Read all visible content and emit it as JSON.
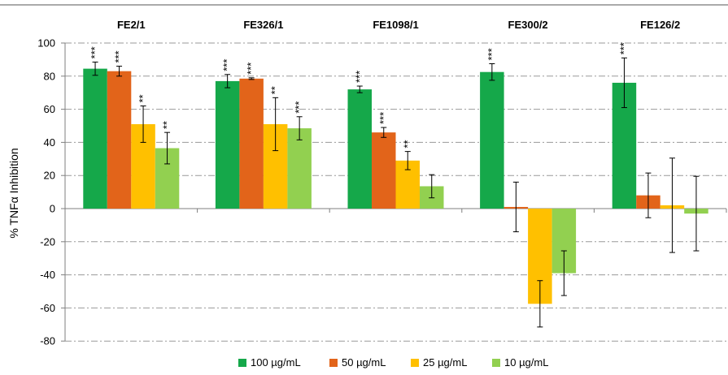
{
  "chart_data": {
    "type": "bar",
    "categories": [
      "FE2/1",
      "FE326/1",
      "FE1098/1",
      "FE300/2",
      "FE126/2"
    ],
    "ylabel": "% TNFα Inhibition",
    "ylim": [
      -80,
      100
    ],
    "yticks": [
      100,
      80,
      60,
      40,
      20,
      0,
      -20,
      -40,
      -60,
      -80
    ],
    "grid": true,
    "legend_position": "bottom",
    "series": [
      {
        "name": "100 µg/mL",
        "color": "#15a84a",
        "values": [
          84.5,
          77,
          72,
          82.5,
          76
        ],
        "errors": [
          4,
          4,
          2,
          5,
          15
        ],
        "significance": [
          "***",
          "***",
          "***",
          "***",
          "***"
        ]
      },
      {
        "name": "50 µg/mL",
        "color": "#e2641a",
        "values": [
          83,
          78.5,
          46,
          1,
          8
        ],
        "errors": [
          3,
          0.5,
          3,
          15,
          13.5
        ],
        "significance": [
          "***",
          "***",
          "***",
          "",
          ""
        ]
      },
      {
        "name": "25 µg/mL",
        "color": "#ffc000",
        "values": [
          51,
          51,
          29,
          0,
          2
        ],
        "errors": [
          11,
          16,
          5.5,
          0,
          28.5
        ],
        "significance": [
          "**",
          "**",
          "**",
          "",
          ""
        ]
      },
      {
        "name": "10 µg/mL",
        "color": "#92d050",
        "values": [
          36.5,
          48.5,
          13.5,
          -39,
          -3
        ],
        "errors": [
          9.5,
          7,
          7,
          13.5,
          22.5
        ],
        "significance": [
          "**",
          "***",
          "",
          "",
          ""
        ]
      }
    ],
    "extra_bar": {
      "category_index": 3,
      "series_index": 2,
      "value": -57.5,
      "error": 14
    }
  }
}
